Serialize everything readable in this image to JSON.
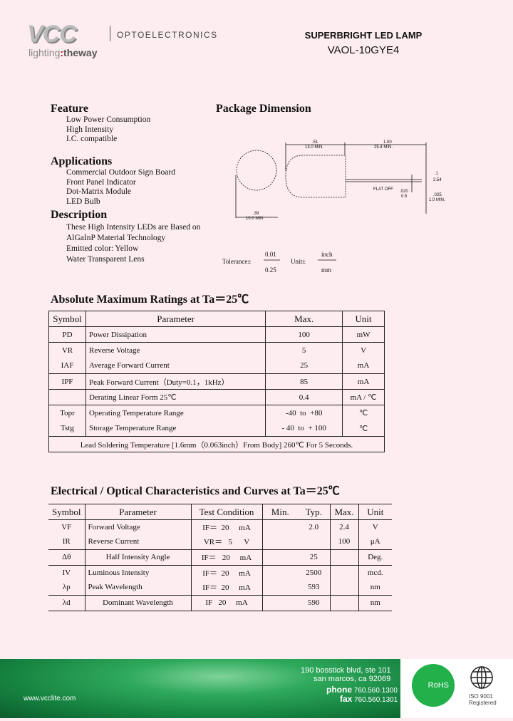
{
  "header": {
    "logo": "VCC",
    "tagline_a": "lighting",
    "tagline_sep": ":",
    "tagline_b": "theway",
    "division": "OPTOELECTRONICS",
    "title": "SUPERBRIGHT LED LAMP",
    "part": "VAOL-10GYE4"
  },
  "feature": {
    "heading": "Feature",
    "items": [
      "Low Power Consumption",
      "High Intensity",
      "I.C. compatible"
    ]
  },
  "applications": {
    "heading": "Applications",
    "items": [
      "Commercial Outdoor Sign Board",
      "Front Panel Indicator",
      "Dot-Matrix Module",
      "LED Bulb"
    ]
  },
  "description": {
    "heading": "Description",
    "items": [
      "These High Intensity LEDs are Based on",
      "AlGaInP Material Technology",
      "Emitted color:  Yellow",
      "Water Transparent Lens"
    ]
  },
  "package": {
    "heading": "Package Dimension",
    "dims": {
      "body_len_in": ".51",
      "body_len_mm": "13.0 MIN.",
      "lead_len_in": "1.00",
      "lead_len_mm": "25.4 MIN.",
      "diam_in": ".39",
      "diam_mm": "10.0 MIN",
      "lead_sp_in": ".1",
      "lead_sp_mm": "2.54",
      "flat": "FLAT OFF",
      "stand_in": ".020",
      "stand_mm": "0.5",
      "lead_w_in": ".025",
      "lead_w_mm": "1.0 MIN."
    },
    "tolerance_label": "Tolerance±",
    "tol_inch": "0.01",
    "tol_mm": "0.25",
    "unit_label": "Unit±",
    "unit_inch": "inch",
    "unit_mm": "mm"
  },
  "abs_max": {
    "heading": "Absolute Maximum Ratings at Ta＝25℃",
    "headers": [
      "Symbol",
      "Parameter",
      "Max.",
      "Unit"
    ],
    "rows": [
      [
        "PD",
        "Power Dissipation",
        "100",
        "mW"
      ],
      [
        "VR",
        "Reverse Voltage",
        "5",
        "V"
      ],
      [
        "IAF",
        "Average Forward Current",
        "25",
        "mA"
      ],
      [
        "IPF",
        "Peak Forward Current（Duty=0.1，1kHz）",
        "85",
        "mA"
      ],
      [
        "",
        "Derating Linear Form 25℃",
        "0.4",
        "mA / ℃"
      ],
      [
        "Topr",
        "Operating Temperature Range",
        "-40  to  +80",
        "℃"
      ],
      [
        "Tstg",
        "Storage Temperature Range",
        "- 40  to  + 100",
        "℃"
      ]
    ],
    "note": "Lead Soldering Temperature [1.6mm（0.063inch）From Body] 260℃  For 5 Seconds."
  },
  "electrical": {
    "heading": "Electrical / Optical Characteristics and Curves at Ta＝25℃",
    "headers": [
      "Symbol",
      "Parameter",
      "Test Condition",
      "Min.",
      "Typ.",
      "Max.",
      "Unit"
    ],
    "rows": [
      [
        "VF",
        "Forward Voltage",
        "IF＝  20     mA",
        "",
        "2.0",
        "2.4",
        "V"
      ],
      [
        "IR",
        "Reverse Current",
        "VR＝   5      V",
        "",
        "",
        "100",
        "μA"
      ],
      [
        "Δθ",
        "Half Intensity Angle",
        "IF＝   20     mA",
        "",
        "25",
        "",
        "Deg."
      ],
      [
        "IV",
        "Luminous Intensity",
        "IF＝  20     mA",
        "",
        "2500",
        "",
        "mcd."
      ],
      [
        "λp",
        "Peak Wavelength",
        "IF＝  20     mA",
        "",
        "593",
        "",
        "nm"
      ],
      [
        "λd",
        "Dominant Wavelength",
        "IF   20     mA",
        "",
        "590",
        "",
        "nm"
      ]
    ]
  },
  "footer": {
    "website": "www.vcclite.com",
    "address1": "190 bosstick blvd, ste 101",
    "address2": "san marcos, ca 92069",
    "phone_label": "phone",
    "phone": "760.560.1300",
    "fax_label": "fax",
    "fax": "760.560.1301",
    "rohs": "RoHS",
    "iso1": "ISO 9001",
    "iso2": "Registered"
  },
  "colors": {
    "background": "#fdedf0",
    "footer_green": "#1f9a4e",
    "rohs_green": "#22b04b"
  }
}
